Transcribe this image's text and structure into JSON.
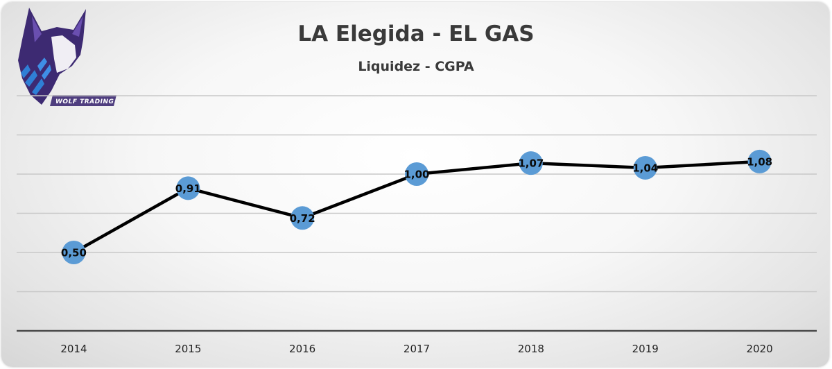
{
  "chart_data": {
    "type": "line",
    "title": "LA Elegida - EL GAS",
    "subtitle": "Liquidez - CGPA",
    "categories": [
      "2014",
      "2015",
      "2016",
      "2017",
      "2018",
      "2019",
      "2020"
    ],
    "series": [
      {
        "name": "Liquidez",
        "values": [
          0.5,
          0.91,
          0.72,
          1.0,
          1.07,
          1.04,
          1.08
        ]
      }
    ],
    "data_labels": [
      "0,50",
      "0,91",
      "0,72",
      "1,00",
      "1,07",
      "1,04",
      "1,08"
    ],
    "ylim": [
      0,
      1.5
    ],
    "grid": true,
    "xlabel": "",
    "ylabel": "",
    "legend": "none"
  },
  "logo": {
    "name": "Wolf Trading",
    "caption": "WOLF TRADING"
  },
  "colors": {
    "line": "#000000",
    "marker": "#5b9bd5",
    "grid": "#c8c8c8",
    "axis": "#4a4a4a",
    "title": "#3a3a3a",
    "logo_primary": "#3d2a72",
    "logo_accent": "#2f7fd6"
  }
}
